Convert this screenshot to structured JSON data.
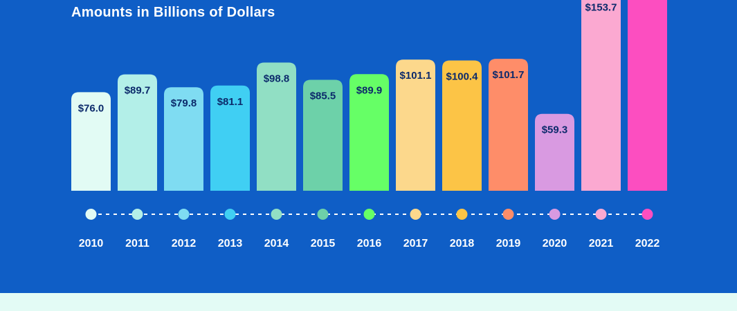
{
  "subtitle": "Amounts in Billions of Dollars",
  "colors": {
    "background": "#0f5ec6",
    "footer_band": "#e3fbf5",
    "timeline_dash": "#ffffff",
    "value_label": "#0c2a6b",
    "year_label": "#ffffff"
  },
  "chart_data": {
    "type": "bar",
    "categories": [
      "2010",
      "2011",
      "2012",
      "2013",
      "2014",
      "2015",
      "2016",
      "2017",
      "2018",
      "2019",
      "2020",
      "2021",
      "2022"
    ],
    "values": [
      76.0,
      89.7,
      79.8,
      81.1,
      98.8,
      85.5,
      89.9,
      101.1,
      100.4,
      101.7,
      59.3,
      153.7,
      null
    ],
    "value_labels": [
      "$76.0",
      "$89.7",
      "$79.8",
      "$81.1",
      "$98.8",
      "$85.5",
      "$89.9",
      "$101.1",
      "$100.4",
      "$101.7",
      "$59.3",
      "$153.7",
      ""
    ],
    "tick_labels": [
      "2010",
      "2011",
      "2012",
      "2013",
      "2014",
      "2015",
      "2016",
      "2017",
      "2018",
      "2019",
      "2020",
      "2021",
      "2022"
    ],
    "bar_colors": [
      "#e2fbf4",
      "#b3efe8",
      "#7fdcf2",
      "#40cff3",
      "#91dfc4",
      "#6dd1a9",
      "#66ff66",
      "#fcd88c",
      "#fcc446",
      "#fe8d69",
      "#d99ae1",
      "#fba9d1",
      "#fc4ec0"
    ],
    "note": "",
    "title": "",
    "xlabel": "",
    "ylabel": "",
    "ylim": [
      0,
      160
    ],
    "grid": false,
    "legend": "none"
  }
}
